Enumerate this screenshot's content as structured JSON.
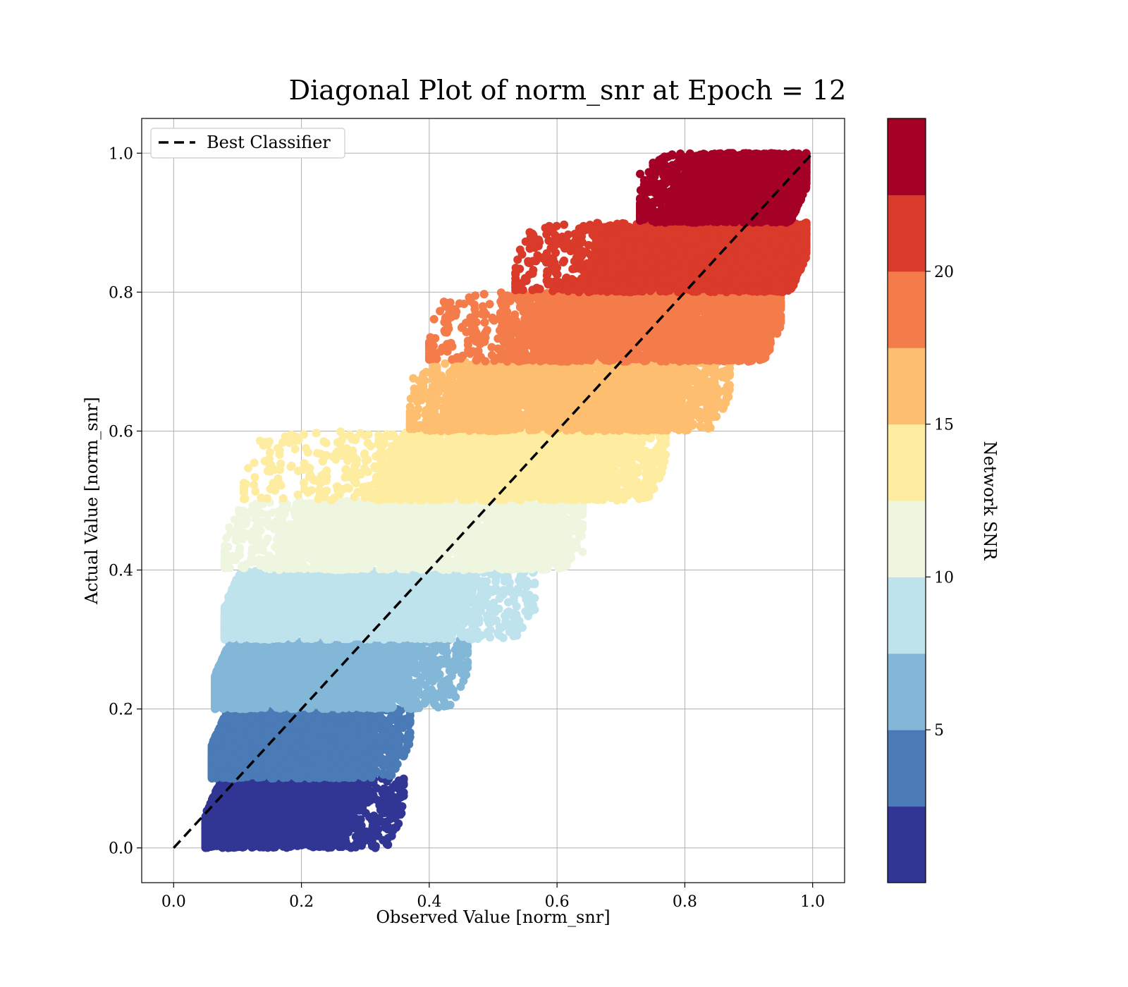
{
  "chart_data": {
    "type": "scatter",
    "title": "Diagonal Plot of norm_snr at Epoch = 12",
    "xlabel": "Observed Value [norm_snr]",
    "ylabel": "Actual Value [norm_snr]",
    "xlim": [
      -0.05,
      1.05
    ],
    "ylim": [
      -0.05,
      1.05
    ],
    "xticks": [
      "0.0",
      "0.2",
      "0.4",
      "0.6",
      "0.8",
      "1.0"
    ],
    "yticks": [
      "0.0",
      "0.2",
      "0.4",
      "0.6",
      "0.8",
      "1.0"
    ],
    "grid": true,
    "legend": {
      "placement": "upper-left",
      "entries": [
        {
          "label": "Best Classifier",
          "style": "dashed",
          "color": "#000000"
        }
      ]
    },
    "reference_line": {
      "x": [
        0.0,
        1.0
      ],
      "y": [
        0.0,
        1.0
      ],
      "style": "dashed",
      "color": "#000000"
    },
    "colorbar": {
      "label": "Network SNR",
      "ticks": [
        "5",
        "10",
        "15",
        "20"
      ],
      "tick_values": [
        5,
        10,
        15,
        20
      ],
      "range": [
        0,
        25
      ],
      "bands": [
        {
          "color": "#313695"
        },
        {
          "color": "#4a7bb7"
        },
        {
          "color": "#82b7d7"
        },
        {
          "color": "#bfe3ed"
        },
        {
          "color": "#eef6df"
        },
        {
          "color": "#feeda1"
        },
        {
          "color": "#fdbe70"
        },
        {
          "color": "#f47c4a"
        },
        {
          "color": "#d93a2a"
        },
        {
          "color": "#a50026"
        }
      ]
    },
    "series": [
      {
        "color": "#313695",
        "description_range": {
          "actual": [
            0.0,
            0.1
          ],
          "observed_core": [
            0.06,
            0.27
          ],
          "spread": [
            0.05,
            0.36
          ]
        },
        "outliers": [
          [
            0.355,
            0.048
          ],
          [
            0.31,
            0.011
          ],
          [
            0.275,
            0.002
          ]
        ]
      },
      {
        "color": "#4a7bb7",
        "description_range": {
          "actual": [
            0.1,
            0.2
          ],
          "observed_core": [
            0.065,
            0.3
          ],
          "spread": [
            0.06,
            0.37
          ]
        },
        "outliers": [
          [
            0.36,
            0.175
          ],
          [
            0.335,
            0.14
          ]
        ]
      },
      {
        "color": "#82b7d7",
        "description_range": {
          "actual": [
            0.2,
            0.3
          ],
          "observed_core": [
            0.07,
            0.36
          ],
          "spread": [
            0.065,
            0.46
          ]
        },
        "outliers": [
          [
            0.46,
            0.268
          ],
          [
            0.44,
            0.27
          ]
        ]
      },
      {
        "color": "#bfe3ed",
        "description_range": {
          "actual": [
            0.3,
            0.4
          ],
          "observed_core": [
            0.09,
            0.45
          ],
          "spread": [
            0.08,
            0.565
          ]
        },
        "outliers": [
          [
            0.565,
            0.343
          ],
          [
            0.562,
            0.38
          ],
          [
            0.495,
            0.303
          ]
        ]
      },
      {
        "color": "#eef6df",
        "description_range": {
          "actual": [
            0.4,
            0.5
          ],
          "observed_core": [
            0.2,
            0.58
          ],
          "spread": [
            0.08,
            0.64
          ]
        },
        "outliers": [
          [
            0.64,
            0.426
          ],
          [
            0.11,
            0.403
          ]
        ]
      },
      {
        "color": "#feeda1",
        "description_range": {
          "actual": [
            0.5,
            0.6
          ],
          "observed_core": [
            0.34,
            0.69
          ],
          "spread": [
            0.11,
            0.77
          ]
        },
        "outliers": [
          [
            0.19,
            0.586
          ],
          [
            0.235,
            0.585
          ],
          [
            0.765,
            0.59
          ],
          [
            0.745,
            0.53
          ],
          [
            0.11,
            0.502
          ]
        ]
      },
      {
        "color": "#fdbe70",
        "description_range": {
          "actual": [
            0.6,
            0.7
          ],
          "observed_core": [
            0.45,
            0.79
          ],
          "spread": [
            0.37,
            0.87
          ]
        },
        "outliers": [
          [
            0.375,
            0.676
          ],
          [
            0.87,
            0.666
          ],
          [
            0.79,
            0.604
          ]
        ]
      },
      {
        "color": "#f47c4a",
        "description_range": {
          "actual": [
            0.7,
            0.8
          ],
          "observed_core": [
            0.56,
            0.91
          ],
          "spread": [
            0.4,
            0.95
          ]
        },
        "outliers": [
          [
            0.405,
            0.704
          ],
          [
            0.48,
            0.73
          ],
          [
            0.895,
            0.733
          ],
          [
            0.555,
            0.78
          ]
        ]
      },
      {
        "color": "#d93a2a",
        "description_range": {
          "actual": [
            0.8,
            0.9
          ],
          "observed_core": [
            0.67,
            0.97
          ],
          "spread": [
            0.535,
            0.99
          ]
        },
        "outliers": [
          [
            0.615,
            0.873
          ],
          [
            0.54,
            0.812
          ],
          [
            0.6,
            0.835
          ],
          [
            0.97,
            0.81
          ]
        ]
      },
      {
        "color": "#a50026",
        "description_range": {
          "actual": [
            0.9,
            1.0
          ],
          "observed_core": [
            0.8,
            0.98
          ],
          "spread": [
            0.73,
            0.99
          ]
        },
        "outliers": [
          [
            0.73,
            0.97
          ],
          [
            0.76,
            0.99
          ],
          [
            0.735,
            0.913
          ],
          [
            0.78,
            0.998
          ]
        ]
      }
    ]
  }
}
